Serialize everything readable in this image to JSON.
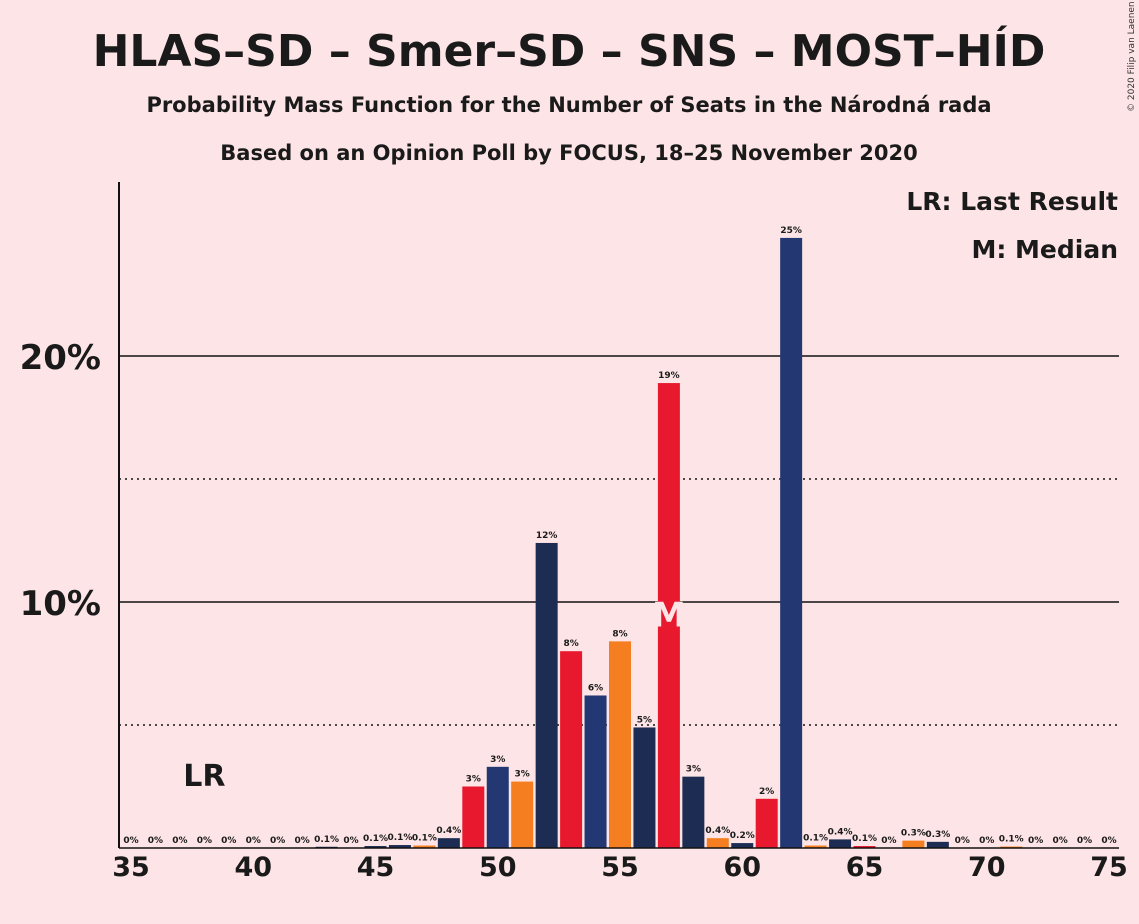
{
  "chart_data": {
    "type": "bar",
    "title": "HLAS–SD – Smer–SD – SNS – MOST–HÍD",
    "subtitle": "Probability Mass Function for the Number of Seats in the Národná rada",
    "subtitle2": "Based on an Opinion Poll by FOCUS, 18–25 November 2020",
    "copyright": "© 2020 Filip van Laenen",
    "legend": {
      "lr": "LR: Last Result",
      "m": "M: Median",
      "placement": "top-right"
    },
    "lr_label": "LR",
    "lr_seat": 38,
    "median_label": "M",
    "median_seat": 57,
    "x_range": [
      35,
      75
    ],
    "x_ticks": [
      {
        "value": 35,
        "label": "35"
      },
      {
        "value": 40,
        "label": "40"
      },
      {
        "value": 45,
        "label": "45"
      },
      {
        "value": 50,
        "label": "50"
      },
      {
        "value": 55,
        "label": "55"
      },
      {
        "value": 60,
        "label": "60"
      },
      {
        "value": 65,
        "label": "65"
      },
      {
        "value": 70,
        "label": "70"
      },
      {
        "value": 75,
        "label": "75"
      }
    ],
    "y_range": [
      0,
      26
    ],
    "y_ticks": [
      {
        "value": 10,
        "label": "10%"
      },
      {
        "value": 20,
        "label": "20%"
      }
    ],
    "solid_gridlines": [
      10,
      20
    ],
    "dotted_gridlines": [
      5,
      15
    ],
    "colors": {
      "navy": "#1c2c52",
      "blue": "#233873",
      "red": "#e8192f",
      "orange": "#f57f20"
    },
    "bars": [
      {
        "seat": 35,
        "value": 0,
        "label": "0%",
        "color": "navy"
      },
      {
        "seat": 36,
        "value": 0,
        "label": "0%",
        "color": "red"
      },
      {
        "seat": 37,
        "value": 0,
        "label": "0%",
        "color": "navy"
      },
      {
        "seat": 38,
        "value": 0,
        "label": "0%",
        "color": "orange"
      },
      {
        "seat": 39,
        "value": 0,
        "label": "0%",
        "color": "navy"
      },
      {
        "seat": 40,
        "value": 0,
        "label": "0%",
        "color": "red"
      },
      {
        "seat": 41,
        "value": 0,
        "label": "0%",
        "color": "navy"
      },
      {
        "seat": 42,
        "value": 0,
        "label": "0%",
        "color": "orange"
      },
      {
        "seat": 43,
        "value": 0.05,
        "label": "0.1%",
        "color": "navy"
      },
      {
        "seat": 44,
        "value": 0,
        "label": "0%",
        "color": "red"
      },
      {
        "seat": 45,
        "value": 0.08,
        "label": "0.1%",
        "color": "navy"
      },
      {
        "seat": 46,
        "value": 0.12,
        "label": "0.1%",
        "color": "navy"
      },
      {
        "seat": 47,
        "value": 0.1,
        "label": "0.1%",
        "color": "orange"
      },
      {
        "seat": 48,
        "value": 0.4,
        "label": "0.4%",
        "color": "navy"
      },
      {
        "seat": 49,
        "value": 2.5,
        "label": "3%",
        "color": "red"
      },
      {
        "seat": 50,
        "value": 3.3,
        "label": "3%",
        "color": "blue"
      },
      {
        "seat": 51,
        "value": 2.7,
        "label": "3%",
        "color": "orange"
      },
      {
        "seat": 52,
        "value": 12.4,
        "label": "12%",
        "color": "navy"
      },
      {
        "seat": 53,
        "value": 8.0,
        "label": "8%",
        "color": "red"
      },
      {
        "seat": 54,
        "value": 6.2,
        "label": "6%",
        "color": "blue"
      },
      {
        "seat": 55,
        "value": 8.4,
        "label": "8%",
        "color": "orange"
      },
      {
        "seat": 56,
        "value": 4.9,
        "label": "5%",
        "color": "navy"
      },
      {
        "seat": 57,
        "value": 18.9,
        "label": "19%",
        "color": "red"
      },
      {
        "seat": 58,
        "value": 2.9,
        "label": "3%",
        "color": "navy"
      },
      {
        "seat": 59,
        "value": 0.4,
        "label": "0.4%",
        "color": "orange"
      },
      {
        "seat": 60,
        "value": 0.2,
        "label": "0.2%",
        "color": "navy"
      },
      {
        "seat": 61,
        "value": 2.0,
        "label": "2%",
        "color": "red"
      },
      {
        "seat": 62,
        "value": 24.8,
        "label": "25%",
        "color": "blue"
      },
      {
        "seat": 63,
        "value": 0.1,
        "label": "0.1%",
        "color": "orange"
      },
      {
        "seat": 64,
        "value": 0.35,
        "label": "0.4%",
        "color": "navy"
      },
      {
        "seat": 65,
        "value": 0.08,
        "label": "0.1%",
        "color": "red"
      },
      {
        "seat": 66,
        "value": 0,
        "label": "0%",
        "color": "navy"
      },
      {
        "seat": 67,
        "value": 0.3,
        "label": "0.3%",
        "color": "orange"
      },
      {
        "seat": 68,
        "value": 0.25,
        "label": "0.3%",
        "color": "navy"
      },
      {
        "seat": 69,
        "value": 0,
        "label": "0%",
        "color": "red"
      },
      {
        "seat": 70,
        "value": 0,
        "label": "0%",
        "color": "navy"
      },
      {
        "seat": 71,
        "value": 0.06,
        "label": "0.1%",
        "color": "orange"
      },
      {
        "seat": 72,
        "value": 0,
        "label": "0%",
        "color": "navy"
      },
      {
        "seat": 73,
        "value": 0,
        "label": "0%",
        "color": "red"
      },
      {
        "seat": 74,
        "value": 0,
        "label": "0%",
        "color": "navy"
      },
      {
        "seat": 75,
        "value": 0,
        "label": "0%",
        "color": "orange"
      }
    ]
  }
}
